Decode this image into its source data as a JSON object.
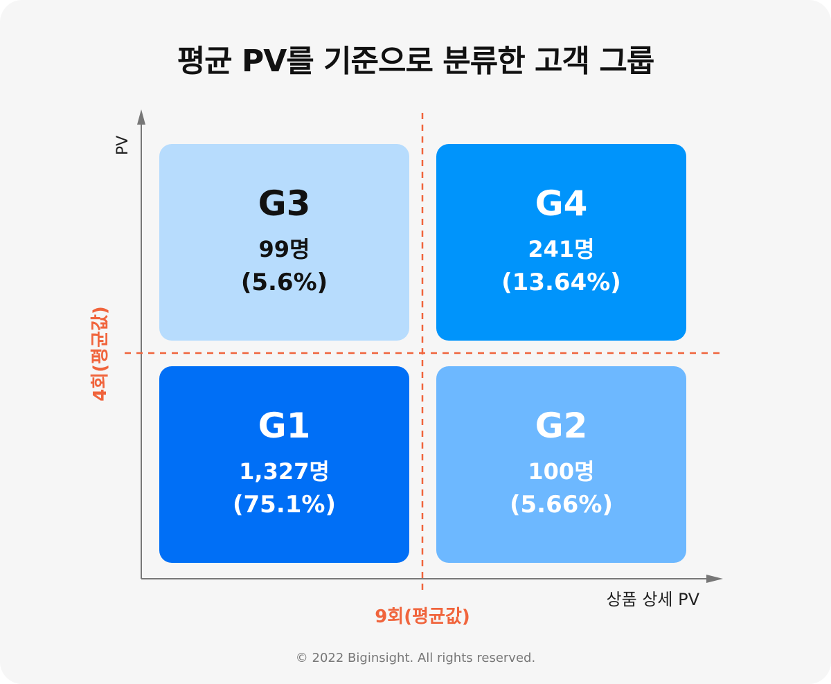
{
  "title": "평균 PV를 기준으로 분류한 고객 그룹",
  "axes": {
    "y_label": "PV",
    "x_label": "상품 상세 PV",
    "y_threshold_label": "4회(평균값)",
    "x_threshold_label": "9회(평균값)"
  },
  "groups": {
    "g3": {
      "name": "G3",
      "count": "99명",
      "percent": "(5.6%)"
    },
    "g4": {
      "name": "G4",
      "count": "241명",
      "percent": "(13.64%)"
    },
    "g1": {
      "name": "G1",
      "count": "1,327명",
      "percent": "(75.1%)"
    },
    "g2": {
      "name": "G2",
      "count": "100명",
      "percent": "(5.66%)"
    }
  },
  "colors": {
    "g1_fill": "#006ff6",
    "g2_fill": "#6db8ff",
    "g3_fill": "#b7dcfd",
    "g4_fill": "#0094fb",
    "threshold_line": "#f0643c",
    "axis": "#777777",
    "dark_text": "#111111",
    "light_text": "#ffffff"
  },
  "footer": "© 2022 Biginsight. All rights reserved."
}
